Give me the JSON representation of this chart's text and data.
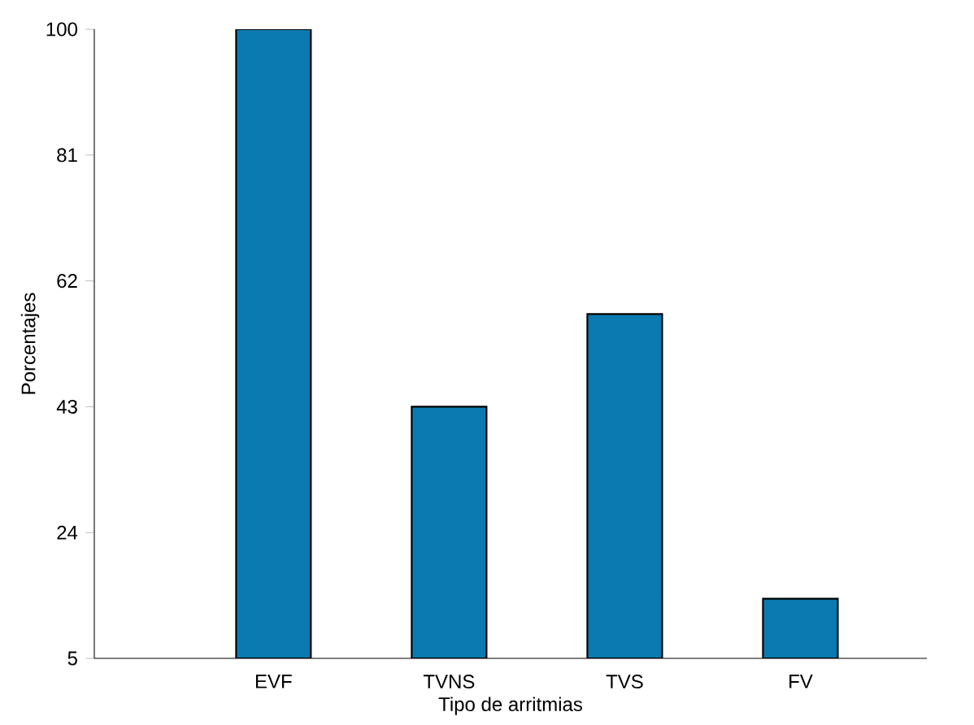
{
  "chart_data": {
    "type": "bar",
    "xlabel": "Tipo de arritmias",
    "ylabel": "Porcentajes",
    "categories": [
      "EVF",
      "TVNS",
      "TVS",
      "FV"
    ],
    "values": [
      100,
      43,
      57,
      14
    ],
    "color": "#0a7ab0",
    "ylim": [
      5,
      100
    ],
    "yticks": [
      5,
      24,
      43,
      62,
      81,
      100
    ]
  }
}
